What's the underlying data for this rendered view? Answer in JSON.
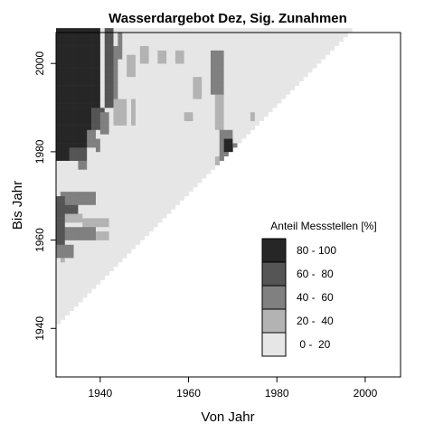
{
  "chart_data": {
    "type": "heatmap",
    "title": "Wasserdargebot Dez, Sig. Zunahmen",
    "xlabel": "Von Jahr",
    "ylabel": "Bis Jahr",
    "xlim": [
      1930,
      2008
    ],
    "ylim": [
      1929,
      2007
    ],
    "x_ticks": [
      1940,
      1960,
      1980,
      2000
    ],
    "y_ticks": [
      1940,
      1960,
      1980,
      2000
    ],
    "cell_size_years": 1,
    "domain": "cells where bis_jahr >= von_jahr + 11 and bis_jahr <= 2007",
    "legend": {
      "title": "Anteil Messstellen [%]",
      "position": "bottom-right",
      "classes": [
        {
          "label": "80 - 100",
          "color": "#262626"
        },
        {
          "label": "60 -  80",
          "color": "#555555"
        },
        {
          "label": "40 -  60",
          "color": "#808080"
        },
        {
          "label": "20 -  40",
          "color": "#b3b3b3"
        },
        {
          "label": " 0 -  20",
          "color": "#e6e6e6"
        }
      ]
    },
    "default_class": 0,
    "class_regions": [
      {
        "x": [
          1930,
          1937
        ],
        "y": [
          1985,
          2007
        ],
        "class": 4
      },
      {
        "x": [
          1938,
          1939
        ],
        "y": [
          1990,
          2007
        ],
        "class": 4
      },
      {
        "x": [
          1930,
          1932
        ],
        "y": [
          1978,
          1984
        ],
        "class": 4
      },
      {
        "x": [
          1933,
          1936
        ],
        "y": [
          1981,
          1984
        ],
        "class": 4
      },
      {
        "x": [
          1938,
          1940
        ],
        "y": [
          1985,
          1989
        ],
        "class": 3
      },
      {
        "x": [
          1941,
          1942
        ],
        "y": [
          1990,
          2007
        ],
        "class": 3
      },
      {
        "x": [
          1943,
          1943
        ],
        "y": [
          1992,
          2003
        ],
        "class": 2
      },
      {
        "x": [
          1940,
          1941
        ],
        "y": [
          1984,
          1988
        ],
        "class": 2
      },
      {
        "x": [
          1933,
          1936
        ],
        "y": [
          1978,
          1980
        ],
        "class": 3
      },
      {
        "x": [
          1937,
          1938
        ],
        "y": [
          1981,
          1984
        ],
        "class": 2
      },
      {
        "x": [
          1935,
          1936
        ],
        "y": [
          1976,
          1977
        ],
        "class": 2
      },
      {
        "x": [
          1939,
          1939
        ],
        "y": [
          1980,
          1982
        ],
        "class": 2
      },
      {
        "x": [
          1944,
          1944
        ],
        "y": [
          2001,
          2006
        ],
        "class": 2
      },
      {
        "x": [
          1943,
          1945
        ],
        "y": [
          1986,
          1991
        ],
        "class": 1
      },
      {
        "x": [
          1931,
          1938
        ],
        "y": [
          1968,
          1970
        ],
        "class": 2
      },
      {
        "x": [
          1930,
          1931
        ],
        "y": [
          1964,
          1969
        ],
        "class": 3
      },
      {
        "x": [
          1932,
          1934
        ],
        "y": [
          1966,
          1967
        ],
        "class": 3
      },
      {
        "x": [
          1930,
          1931
        ],
        "y": [
          1958,
          1963
        ],
        "class": 3
      },
      {
        "x": [
          1932,
          1933
        ],
        "y": [
          1960,
          1962
        ],
        "class": 2
      },
      {
        "x": [
          1934,
          1938
        ],
        "y": [
          1960,
          1962
        ],
        "class": 2
      },
      {
        "x": [
          1930,
          1933
        ],
        "y": [
          1956,
          1958
        ],
        "class": 2
      },
      {
        "x": [
          1939,
          1941
        ],
        "y": [
          1960,
          1961
        ],
        "class": 1
      },
      {
        "x": [
          1936,
          1941
        ],
        "y": [
          1963,
          1964
        ],
        "class": 1
      },
      {
        "x": [
          1932,
          1935
        ],
        "y": [
          1964,
          1965
        ],
        "class": 1
      },
      {
        "x": [
          1931,
          1931
        ],
        "y": [
          1955,
          1955
        ],
        "class": 1
      },
      {
        "x": [
          1965,
          1967
        ],
        "y": [
          1993,
          2002
        ],
        "class": 2
      },
      {
        "x": [
          1966,
          1967
        ],
        "y": [
          1985,
          1992
        ],
        "class": 1
      },
      {
        "x": [
          1967,
          1969
        ],
        "y": [
          1978,
          1984
        ],
        "class": 2
      },
      {
        "x": [
          1968,
          1969
        ],
        "y": [
          1980,
          1982
        ],
        "class": 4
      },
      {
        "x": [
          1970,
          1971
        ],
        "y": [
          1980,
          1981
        ],
        "class": 2
      },
      {
        "x": [
          1966,
          1966
        ],
        "y": [
          1975,
          1978
        ],
        "class": 1
      },
      {
        "x": [
          1946,
          1947
        ],
        "y": [
          1997,
          2001
        ],
        "class": 1
      },
      {
        "x": [
          1949,
          1950
        ],
        "y": [
          2000,
          2003
        ],
        "class": 1
      },
      {
        "x": [
          1953,
          1954
        ],
        "y": [
          2000,
          2002
        ],
        "class": 1
      },
      {
        "x": [
          1957,
          1958
        ],
        "y": [
          2000,
          2002
        ],
        "class": 1
      },
      {
        "x": [
          1961,
          1962
        ],
        "y": [
          1992,
          1996
        ],
        "class": 1
      },
      {
        "x": [
          1959,
          1960
        ],
        "y": [
          1987,
          1988
        ],
        "class": 1
      },
      {
        "x": [
          1947,
          1947
        ],
        "y": [
          1986,
          1991
        ],
        "class": 1
      },
      {
        "x": [
          1974,
          1974
        ],
        "y": [
          1987,
          1988
        ],
        "class": 1
      }
    ]
  }
}
